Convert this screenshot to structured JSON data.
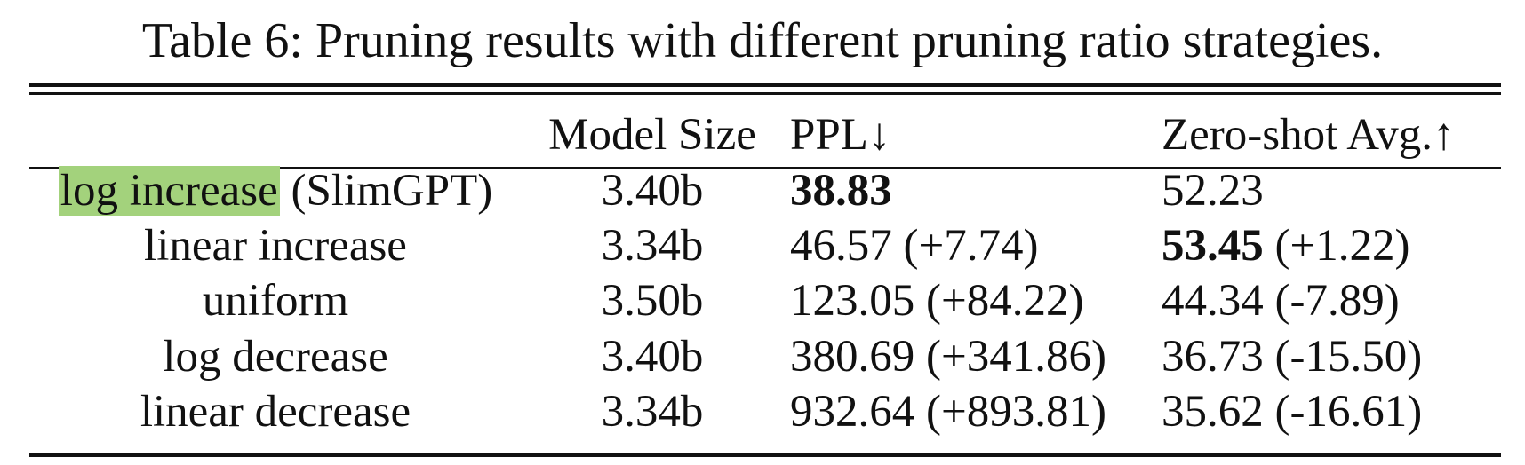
{
  "caption": "Table 6: Pruning results with different pruning ratio strategies.",
  "table": {
    "header": [
      "Model Size",
      "PPL↓",
      "Zero-shot Avg.↑"
    ],
    "rows": [
      [
        [
          {
            "text": "log increase",
            "highlight": "#a3d27c"
          },
          {
            "text": " (SlimGPT)"
          }
        ],
        [
          {
            "text": "3.40b"
          }
        ],
        [
          {
            "text": "38.83",
            "bold": true
          }
        ],
        [
          {
            "text": "52.23"
          }
        ]
      ],
      [
        [
          {
            "text": "linear increase"
          }
        ],
        [
          {
            "text": "3.34b"
          }
        ],
        [
          {
            "text": "46.57 (+7.74)"
          }
        ],
        [
          {
            "text": "53.45",
            "bold": true
          },
          {
            "text": " (+1.22)"
          }
        ]
      ],
      [
        [
          {
            "text": "uniform"
          }
        ],
        [
          {
            "text": "3.50b"
          }
        ],
        [
          {
            "text": "123.05 (+84.22)"
          }
        ],
        [
          {
            "text": "44.34 (-7.89)"
          }
        ]
      ],
      [
        [
          {
            "text": "log decrease"
          }
        ],
        [
          {
            "text": "3.40b"
          }
        ],
        [
          {
            "text": "380.69 (+341.86)"
          }
        ],
        [
          {
            "text": "36.73 (-15.50)"
          }
        ]
      ],
      [
        [
          {
            "text": "linear decrease"
          }
        ],
        [
          {
            "text": "3.34b"
          }
        ],
        [
          {
            "text": "932.64 (+893.81)"
          }
        ],
        [
          {
            "text": "35.62 (-16.61)"
          }
        ]
      ]
    ]
  }
}
